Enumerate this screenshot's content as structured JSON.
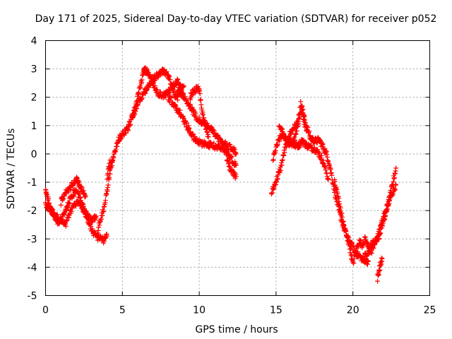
{
  "chart_data": {
    "type": "scatter",
    "title": "Day 171 of 2025, Sidereal Day-to-day VTEC variation (SDTVAR) for receiver p052",
    "xlabel": "GPS time / hours",
    "ylabel": "SDTVAR / TECUs",
    "xlim": [
      0,
      25
    ],
    "ylim": [
      -5,
      4
    ],
    "xticks": [
      0,
      5,
      10,
      15,
      20,
      25
    ],
    "yticks": [
      -5,
      -4,
      -3,
      -2,
      -1,
      0,
      1,
      2,
      3,
      4
    ],
    "grid": true,
    "marker": "plus",
    "color": "#ff0000",
    "series": [
      {
        "name": "SDTVAR",
        "bands": [
          {
            "x": [
              0.0,
              0.2,
              0.4,
              0.6,
              0.8,
              1.0,
              1.2,
              1.4,
              1.6,
              1.8,
              2.0,
              2.2,
              2.4,
              2.6,
              2.8,
              3.0,
              3.2,
              3.4,
              3.6,
              3.8,
              4.0
            ],
            "y": [
              -1.8,
              -1.9,
              -2.0,
              -2.2,
              -2.4,
              -2.3,
              -2.2,
              -1.9,
              -1.6,
              -1.4,
              -1.3,
              -1.5,
              -1.8,
              -2.1,
              -2.4,
              -2.7,
              -2.85,
              -2.95,
              -3.0,
              -3.05,
              -2.9
            ]
          },
          {
            "x": [
              0.0,
              0.1,
              0.2,
              0.3,
              0.5,
              0.7,
              0.9,
              1.1,
              1.3,
              1.5,
              1.7,
              1.9,
              2.1,
              2.3,
              2.5,
              2.7,
              2.9,
              3.1,
              3.3
            ],
            "y": [
              -1.3,
              -1.45,
              -1.7,
              -1.95,
              -2.1,
              -2.2,
              -2.3,
              -2.4,
              -2.5,
              -2.2,
              -2.0,
              -1.8,
              -1.7,
              -1.8,
              -2.0,
              -2.2,
              -2.3,
              -2.3,
              -2.2
            ]
          },
          {
            "x": [
              1.0,
              1.2,
              1.4,
              1.6,
              1.8,
              2.0,
              2.1,
              2.2,
              2.4,
              2.6
            ],
            "y": [
              -1.7,
              -1.4,
              -1.3,
              -1.2,
              -1.0,
              -0.9,
              -1.0,
              -1.1,
              -1.3,
              -1.5
            ]
          },
          {
            "x": [
              3.4,
              3.6,
              3.8,
              4.0,
              4.2,
              4.4,
              4.6,
              4.8,
              5.0,
              5.2,
              5.4,
              5.6,
              5.8,
              6.0,
              6.2,
              6.4,
              6.6
            ],
            "y": [
              -2.7,
              -2.3,
              -1.9,
              -1.3,
              -0.6,
              -0.2,
              0.3,
              0.55,
              0.7,
              0.8,
              0.95,
              1.2,
              1.6,
              2.0,
              2.5,
              2.9,
              3.0
            ]
          },
          {
            "x": [
              4.0,
              4.2,
              4.4
            ],
            "y": [
              -0.8,
              -0.3,
              -0.1
            ]
          },
          {
            "x": [
              5.6,
              5.8,
              6.0,
              6.2,
              6.4,
              6.6,
              6.8,
              7.0,
              7.2,
              7.4,
              7.6,
              7.8,
              8.0,
              8.2,
              8.4,
              8.6,
              8.8,
              9.0
            ],
            "y": [
              1.3,
              1.5,
              1.75,
              2.0,
              2.15,
              2.3,
              2.5,
              2.65,
              2.75,
              2.85,
              2.9,
              2.85,
              2.7,
              2.4,
              2.1,
              2.0,
              2.3,
              2.4
            ]
          },
          {
            "x": [
              6.4,
              6.6,
              6.8,
              7.0,
              7.2,
              7.4,
              7.6,
              7.8,
              8.0,
              8.2,
              8.4,
              8.6,
              8.8,
              9.0
            ],
            "y": [
              3.0,
              2.9,
              2.7,
              2.45,
              2.2,
              2.1,
              2.05,
              2.1,
              2.2,
              2.3,
              2.45,
              2.55,
              2.3,
              2.0
            ]
          },
          {
            "x": [
              8.0,
              8.4,
              8.8,
              9.2,
              9.6,
              10.0,
              10.4,
              10.8,
              11.2,
              11.6,
              12.0,
              12.4
            ],
            "y": [
              2.0,
              1.7,
              1.4,
              1.0,
              0.6,
              0.4,
              0.35,
              0.3,
              0.25,
              0.15,
              -0.1,
              -0.4
            ]
          },
          {
            "x": [
              8.6,
              9.0,
              9.4,
              9.8,
              10.2,
              10.6,
              11.0,
              11.4,
              11.8,
              12.2,
              12.4
            ],
            "y": [
              2.3,
              2.0,
              1.7,
              1.3,
              1.1,
              1.0,
              0.7,
              0.45,
              0.3,
              0.15,
              0.0
            ]
          },
          {
            "x": [
              9.4,
              9.6,
              9.8,
              10.0,
              10.2,
              10.4,
              10.6
            ],
            "y": [
              2.0,
              2.2,
              2.3,
              2.3,
              1.5,
              1.0,
              0.6
            ]
          },
          {
            "x": [
              11.8,
              12.0,
              12.2,
              12.4
            ],
            "y": [
              -0.2,
              -0.5,
              -0.7,
              -0.8
            ]
          },
          {
            "x": [
              14.7,
              14.9,
              15.1,
              15.3,
              15.5,
              15.7,
              15.9,
              16.1,
              16.3,
              16.5,
              16.7,
              16.9
            ],
            "y": [
              -1.4,
              -1.1,
              -0.8,
              -0.5,
              0.0,
              0.4,
              0.7,
              0.9,
              1.0,
              1.3,
              1.6,
              1.1
            ]
          },
          {
            "x": [
              14.8,
              15.0,
              15.2,
              15.4,
              15.6,
              15.8,
              16.0,
              16.2,
              16.4,
              16.6,
              16.8,
              17.0
            ],
            "y": [
              -0.2,
              0.2,
              0.5,
              0.7,
              0.6,
              0.5,
              0.4,
              0.5,
              0.9,
              1.8,
              1.2,
              0.8
            ]
          },
          {
            "x": [
              15.2,
              15.4,
              15.6,
              15.8,
              16.0,
              16.2,
              16.4,
              16.6
            ],
            "y": [
              0.9,
              0.8,
              0.55,
              0.4,
              0.35,
              0.3,
              0.3,
              0.35
            ]
          },
          {
            "x": [
              16.6,
              16.8,
              17.0,
              17.2,
              17.4,
              17.6,
              17.8,
              18.0,
              18.2,
              18.4
            ],
            "y": [
              0.5,
              0.4,
              0.3,
              0.25,
              0.2,
              0.15,
              0.0,
              -0.2,
              -0.5,
              -0.9
            ]
          },
          {
            "x": [
              17.0,
              17.2,
              17.4,
              17.6,
              17.8,
              18.0,
              18.2,
              18.4,
              18.6,
              18.8,
              19.0,
              19.2,
              19.4,
              19.6,
              19.8,
              20.0,
              20.2,
              20.4,
              20.6,
              20.8,
              21.0
            ],
            "y": [
              1.0,
              0.6,
              0.5,
              0.45,
              0.5,
              0.3,
              0.1,
              -0.2,
              -0.7,
              -1.3,
              -1.8,
              -2.2,
              -2.6,
              -2.9,
              -3.1,
              -3.3,
              -3.5,
              -3.6,
              -3.7,
              -3.75,
              -3.8
            ]
          },
          {
            "x": [
              18.8,
              19.0,
              19.2,
              19.4,
              19.6,
              19.8,
              20.0,
              20.2,
              20.4,
              20.6,
              20.8,
              21.0,
              21.2,
              21.4,
              21.6,
              21.8,
              22.0,
              22.2,
              22.4,
              22.6,
              22.8
            ],
            "y": [
              -1.0,
              -1.4,
              -2.0,
              -2.5,
              -2.9,
              -3.3,
              -3.9,
              -3.4,
              -3.1,
              -3.2,
              -3.0,
              -3.3,
              -3.5,
              -3.2,
              -2.9,
              -2.6,
              -2.4,
              -2.0,
              -1.5,
              -1.0,
              -0.5
            ]
          },
          {
            "x": [
              20.6,
              20.8,
              21.0,
              21.2,
              21.4,
              21.6,
              21.8
            ],
            "y": [
              -3.8,
              -3.6,
              -3.4,
              -3.2,
              -3.1,
              -3.0,
              -2.8
            ]
          },
          {
            "x": [
              21.6,
              21.7,
              21.8,
              21.9
            ],
            "y": [
              -4.4,
              -4.1,
              -3.9,
              -3.7
            ]
          },
          {
            "x": [
              21.8,
              22.0,
              22.2,
              22.4,
              22.6,
              22.8
            ],
            "y": [
              -2.6,
              -2.2,
              -1.9,
              -1.6,
              -1.3,
              -1.1
            ]
          }
        ]
      }
    ]
  }
}
